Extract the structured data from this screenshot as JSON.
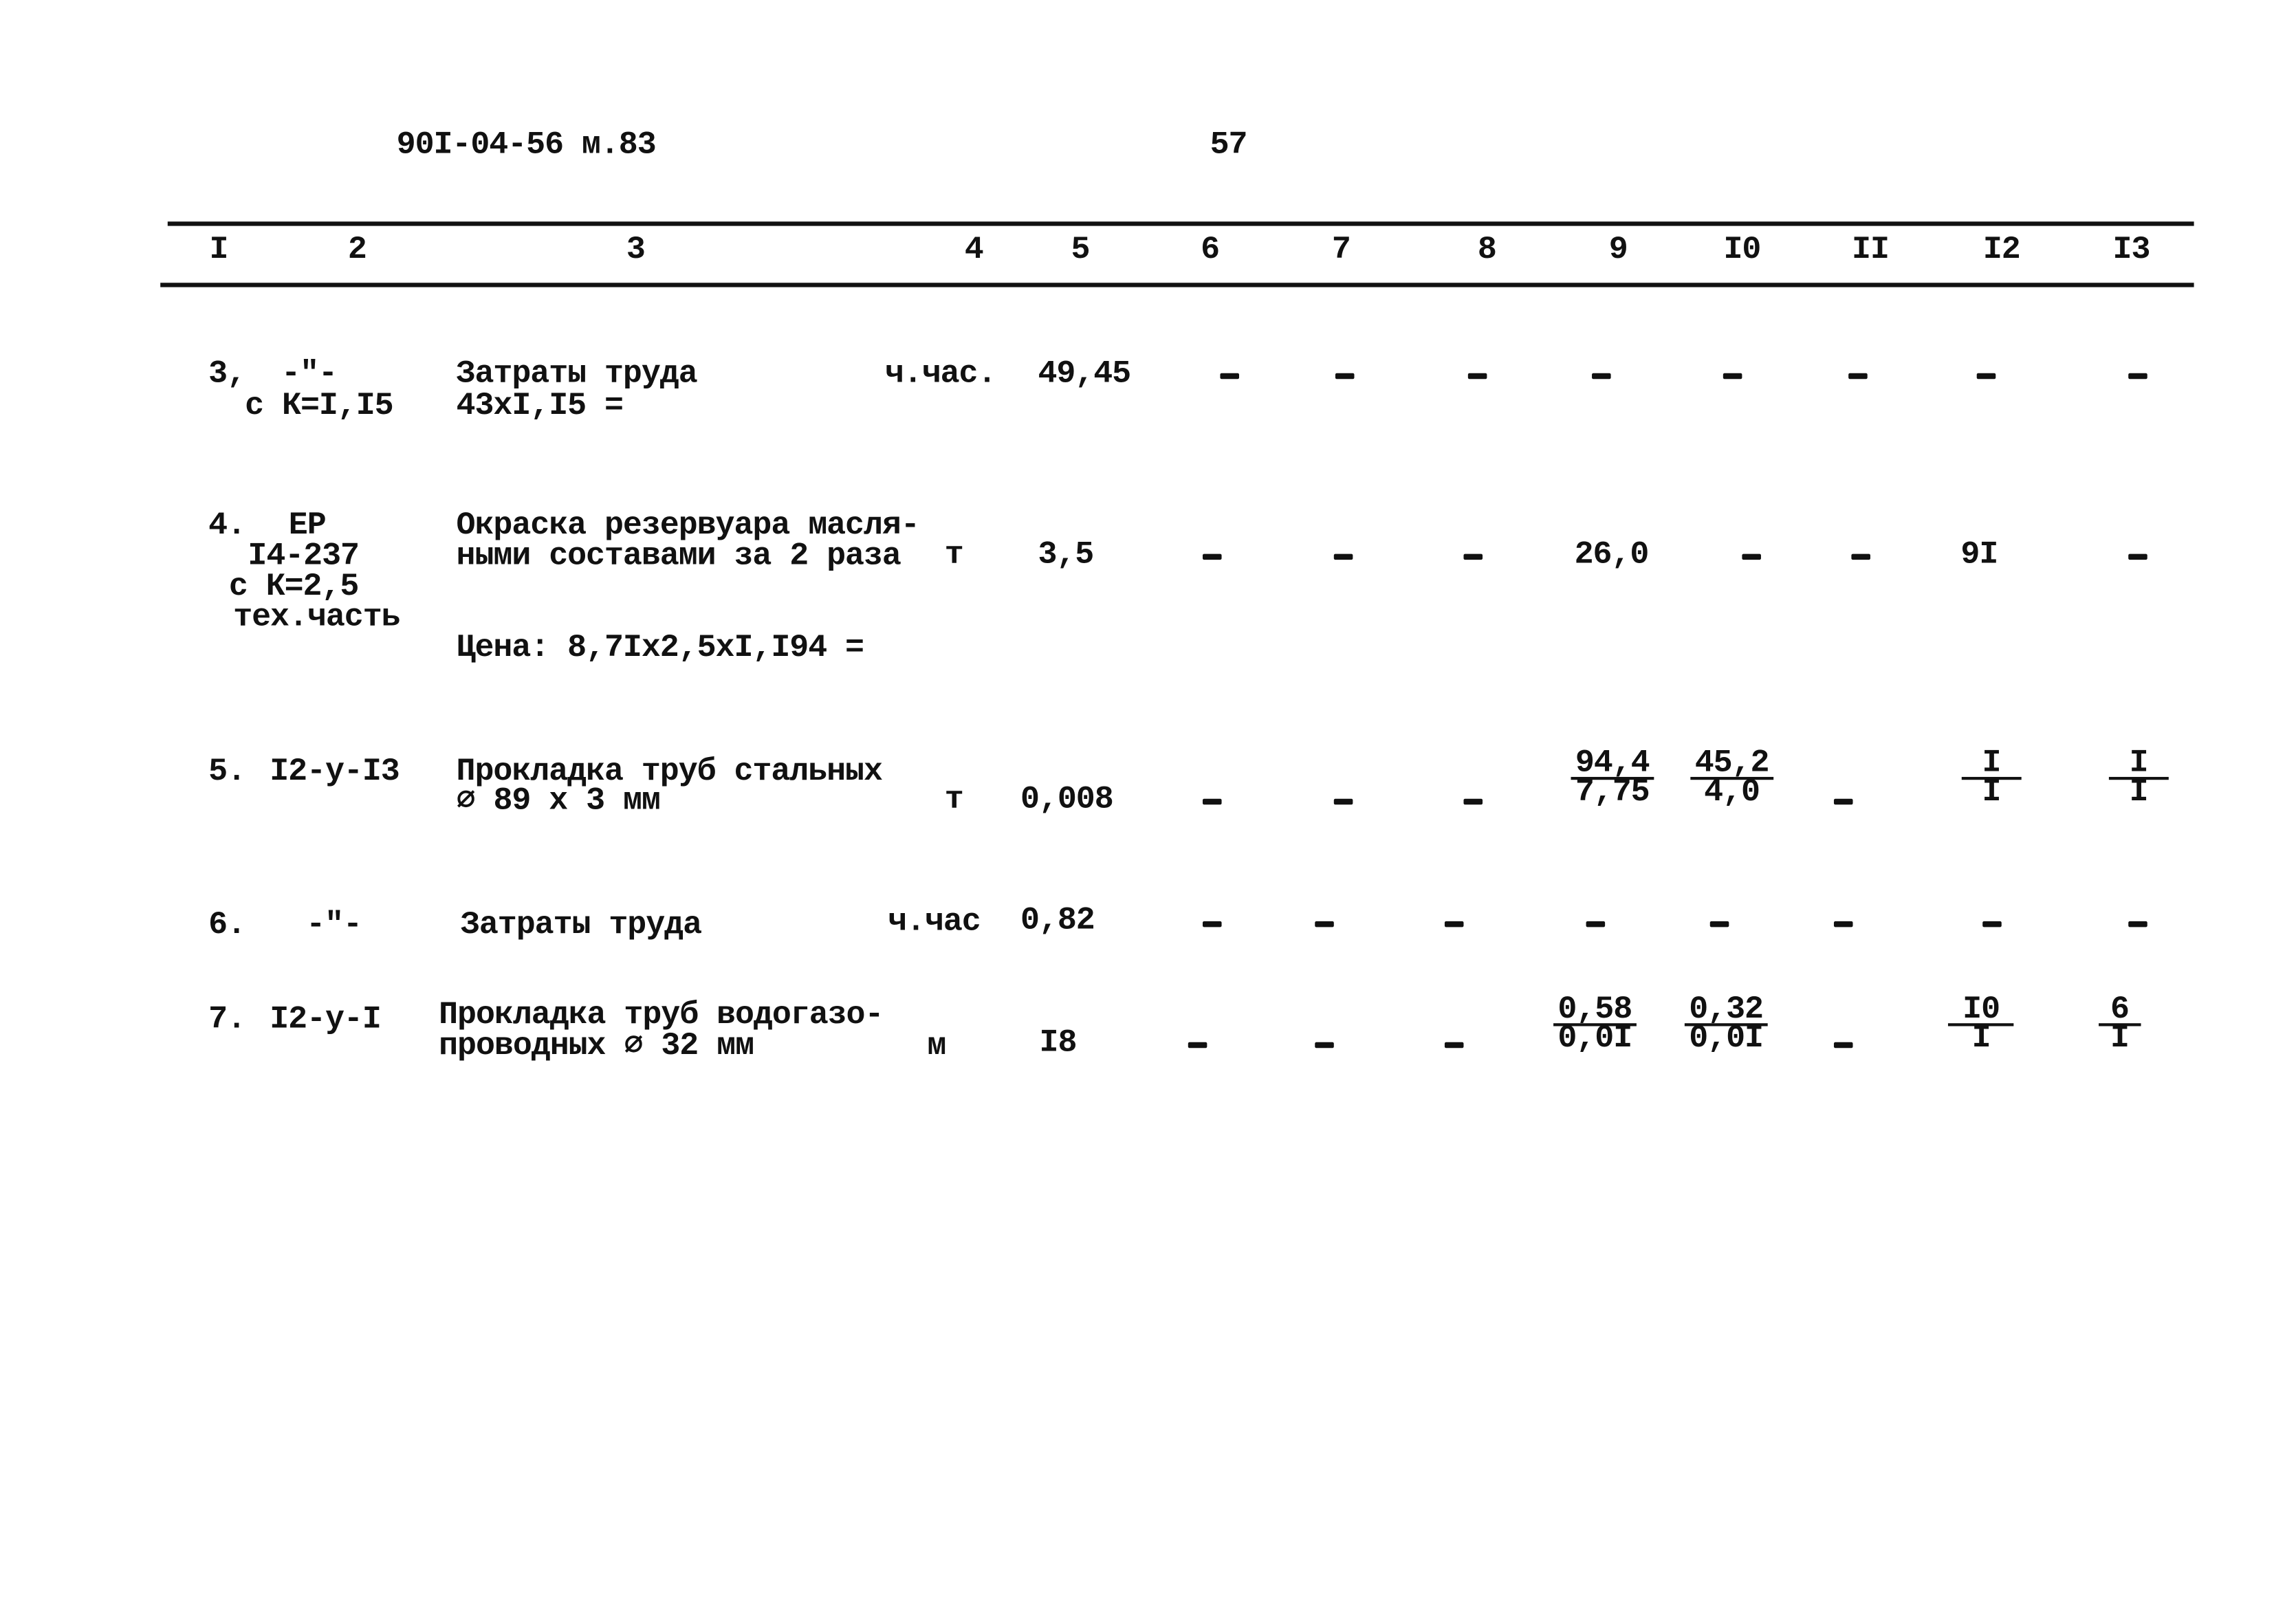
{
  "header": {
    "doc_code": "90I-04-56 м.83",
    "page_number": "57"
  },
  "columns": [
    "I",
    "2",
    "3",
    "4",
    "5",
    "6",
    "7",
    "8",
    "9",
    "I0",
    "II",
    "I2",
    "I3"
  ],
  "rows": [
    {
      "num": "3,",
      "code": [
        "-\"-",
        "с К=I,I5"
      ],
      "desc": [
        "Затраты труда",
        "43хI,I5 ="
      ],
      "unit": "ч.час.",
      "qty": "49,45",
      "c6": "-",
      "c7": "-",
      "c8": "-",
      "c9": "-",
      "c10": "-",
      "c11": "-",
      "c12": "-",
      "c13": "-"
    },
    {
      "num": "4.",
      "code": [
        "ЕР",
        "I4-237",
        "с К=2,5",
        "тех.часть"
      ],
      "desc": [
        "Окраска резервуара масля-",
        "ными составами за 2 раза"
      ],
      "price": "Цена: 8,7Iх2,5хI,I94 =",
      "unit": "т",
      "qty": "3,5",
      "c6": "-",
      "c7": "-",
      "c8": "-",
      "c9": "26,0",
      "c10": "-",
      "c11": "-",
      "c12": "9I",
      "c13": "-"
    },
    {
      "num": "5.",
      "code": [
        "I2-у-I3"
      ],
      "desc": [
        "Прокладка труб стальных",
        "⌀ 89 х 3 мм"
      ],
      "unit": "т",
      "qty": "0,008",
      "c6": "-",
      "c7": "-",
      "c8": "-",
      "c9": {
        "num": "94,4",
        "den": "7,75"
      },
      "c10": {
        "num": "45,2",
        "den": "4,0"
      },
      "c11": "-",
      "c12": {
        "num": "I",
        "den": "I"
      },
      "c13": {
        "num": "I",
        "den": "I"
      }
    },
    {
      "num": "6.",
      "code": [
        "-\"-"
      ],
      "desc": [
        "Затраты труда"
      ],
      "unit": "ч.час",
      "qty": "0,82",
      "c6": "-",
      "c7": "-",
      "c8": "-",
      "c9": "-",
      "c10": "-",
      "c11": "-",
      "c12": "-",
      "c13": "-"
    },
    {
      "num": "7.",
      "code": [
        "I2-у-I"
      ],
      "desc": [
        "Прокладка труб водогазо-",
        "проводных ⌀ 32 мм"
      ],
      "unit": "м",
      "qty": "I8",
      "c6": "-",
      "c7": "-",
      "c8": "-",
      "c9": {
        "num": "0,58",
        "den": "0,0I"
      },
      "c10": {
        "num": "0,32",
        "den": "0,0I"
      },
      "c11": "-",
      "c12": {
        "num": "I0",
        "den": "I"
      },
      "c13": {
        "num": "6",
        "den": "I"
      }
    }
  ]
}
